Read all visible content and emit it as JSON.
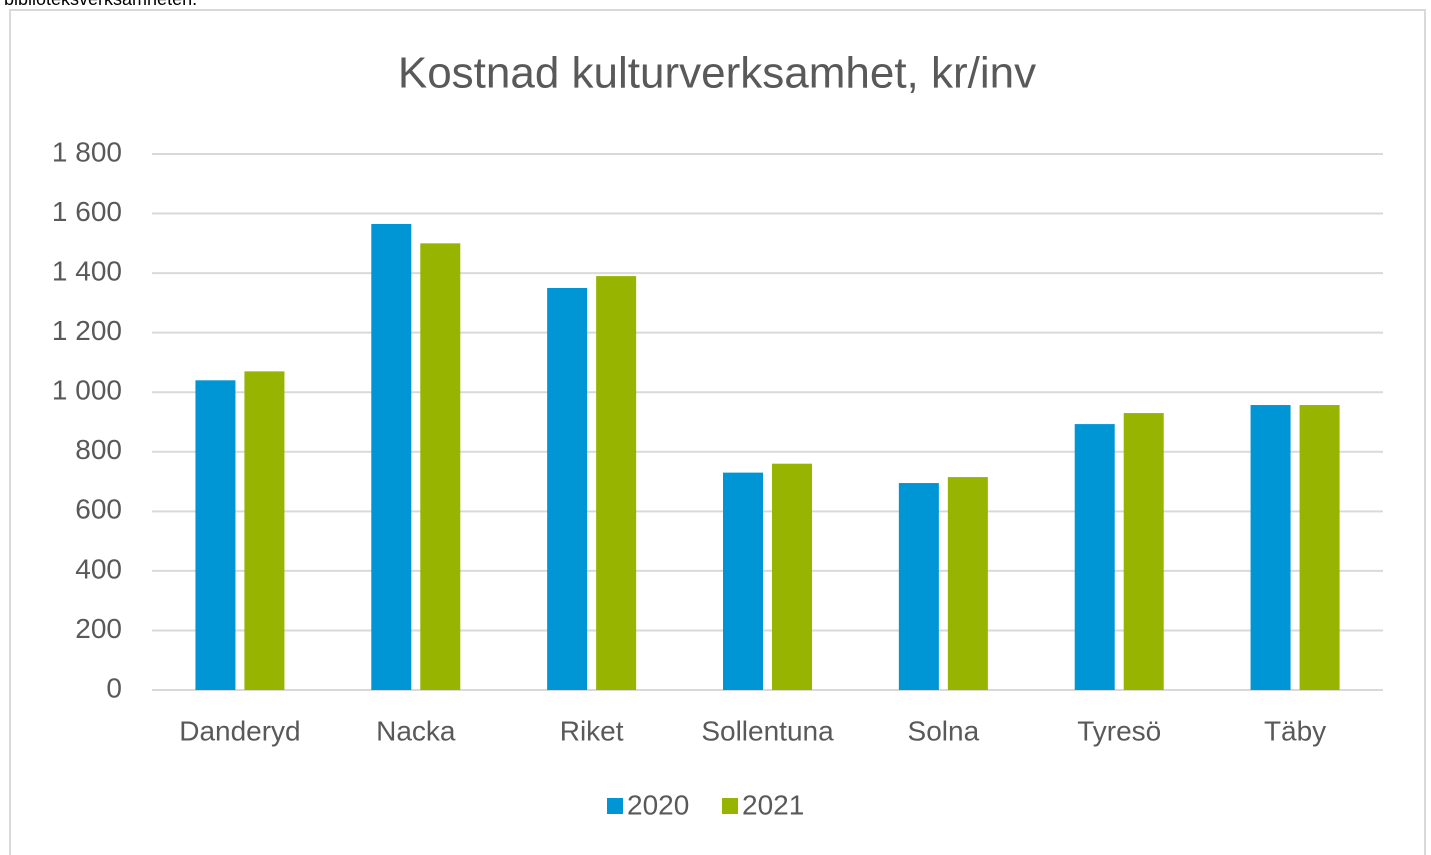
{
  "caption_above": "biblioteksverksamheten.",
  "chart_data": {
    "type": "bar",
    "title": "Kostnad kulturverksamhet, kr/inv",
    "categories": [
      "Danderyd",
      "Nacka",
      "Riket",
      "Sollentuna",
      "Solna",
      "Tyresö",
      "Täby"
    ],
    "series": [
      {
        "name": "2020",
        "color": "#0096d6",
        "values": [
          1040,
          1565,
          1350,
          730,
          695,
          893,
          957
        ]
      },
      {
        "name": "2021",
        "color": "#97b400",
        "values": [
          1070,
          1500,
          1390,
          760,
          715,
          930,
          957
        ]
      }
    ],
    "ylim": [
      0,
      1800
    ],
    "yticks": [
      0,
      200,
      400,
      600,
      800,
      {
        "value": 1000,
        "label": "1 000"
      },
      {
        "value": 1200,
        "label": "1 200"
      },
      {
        "value": 1400,
        "label": "1 400"
      },
      {
        "value": 1600,
        "label": "1 600"
      },
      {
        "value": 1800,
        "label": "1 800"
      }
    ],
    "grid": true,
    "legend": "bottom"
  }
}
